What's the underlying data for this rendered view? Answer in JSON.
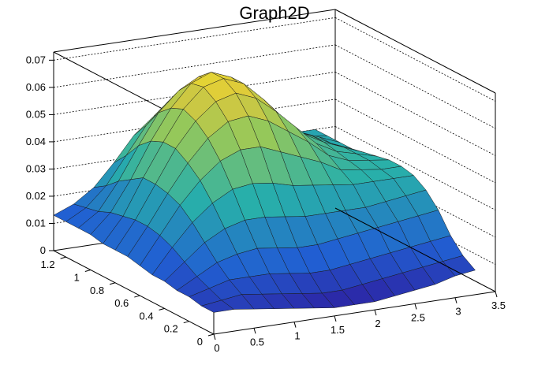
{
  "chart_data": {
    "type": "surface",
    "title": "Graph2D",
    "xlabel": "",
    "ylabel": "",
    "zlabel": "",
    "x_ticks": [
      "0",
      "0.5",
      "1",
      "1.5",
      "2",
      "2.5",
      "3",
      "3.5"
    ],
    "y_ticks": [
      "0",
      "0.2",
      "0.4",
      "0.6",
      "0.8",
      "1",
      "1.2"
    ],
    "z_ticks": [
      "0",
      "0.01",
      "0.02",
      "0.03",
      "0.04",
      "0.05",
      "0.06",
      "0.07"
    ],
    "xlim": [
      0,
      3.5
    ],
    "ylim": [
      0,
      1.3
    ],
    "zlim": [
      0,
      0.073
    ],
    "grid": "dashed",
    "colormap": "viridis-like (blue to yellow)",
    "x": [
      0,
      0.25,
      0.5,
      0.75,
      1.0,
      1.25,
      1.5,
      1.75,
      2.0,
      2.25,
      2.5,
      2.75,
      3.0,
      3.25
    ],
    "y": [
      1.3,
      1.2,
      1.1,
      1.0,
      0.9,
      0.8,
      0.7,
      0.6,
      0.5,
      0.4,
      0.3,
      0.2,
      0.1,
      0.0
    ],
    "z": [
      [
        0.013,
        0.016,
        0.021,
        0.029,
        0.038,
        0.044,
        0.046,
        0.044,
        0.04,
        0.036,
        0.032,
        0.031,
        0.03,
        0.03
      ],
      [
        0.013,
        0.017,
        0.024,
        0.034,
        0.044,
        0.051,
        0.055,
        0.052,
        0.047,
        0.041,
        0.036,
        0.034,
        0.031,
        0.03
      ],
      [
        0.013,
        0.018,
        0.028,
        0.04,
        0.051,
        0.058,
        0.062,
        0.059,
        0.053,
        0.045,
        0.038,
        0.036,
        0.033,
        0.03
      ],
      [
        0.013,
        0.02,
        0.031,
        0.044,
        0.055,
        0.063,
        0.066,
        0.063,
        0.056,
        0.048,
        0.04,
        0.037,
        0.033,
        0.03
      ],
      [
        0.012,
        0.021,
        0.034,
        0.046,
        0.057,
        0.064,
        0.066,
        0.063,
        0.056,
        0.048,
        0.041,
        0.037,
        0.034,
        0.031
      ],
      [
        0.012,
        0.022,
        0.034,
        0.046,
        0.055,
        0.061,
        0.063,
        0.06,
        0.054,
        0.047,
        0.04,
        0.036,
        0.034,
        0.032
      ],
      [
        0.012,
        0.022,
        0.033,
        0.043,
        0.051,
        0.056,
        0.057,
        0.054,
        0.049,
        0.044,
        0.038,
        0.035,
        0.034,
        0.033
      ],
      [
        0.011,
        0.021,
        0.031,
        0.039,
        0.045,
        0.048,
        0.048,
        0.045,
        0.042,
        0.039,
        0.035,
        0.034,
        0.033,
        0.033
      ],
      [
        0.01,
        0.019,
        0.027,
        0.033,
        0.037,
        0.038,
        0.037,
        0.035,
        0.034,
        0.033,
        0.032,
        0.032,
        0.032,
        0.032
      ],
      [
        0.01,
        0.016,
        0.022,
        0.026,
        0.028,
        0.028,
        0.027,
        0.026,
        0.026,
        0.026,
        0.026,
        0.027,
        0.028,
        0.029
      ],
      [
        0.009,
        0.013,
        0.017,
        0.019,
        0.02,
        0.019,
        0.018,
        0.018,
        0.019,
        0.02,
        0.021,
        0.022,
        0.023,
        0.024
      ],
      [
        0.009,
        0.011,
        0.013,
        0.013,
        0.013,
        0.012,
        0.011,
        0.011,
        0.012,
        0.013,
        0.014,
        0.015,
        0.016,
        0.017
      ],
      [
        0.008,
        0.009,
        0.01,
        0.009,
        0.008,
        0.007,
        0.006,
        0.006,
        0.007,
        0.008,
        0.009,
        0.01,
        0.011,
        0.012
      ],
      [
        0.008,
        0.008,
        0.007,
        0.006,
        0.005,
        0.004,
        0.003,
        0.003,
        0.003,
        0.004,
        0.005,
        0.006,
        0.008,
        0.009
      ]
    ]
  }
}
